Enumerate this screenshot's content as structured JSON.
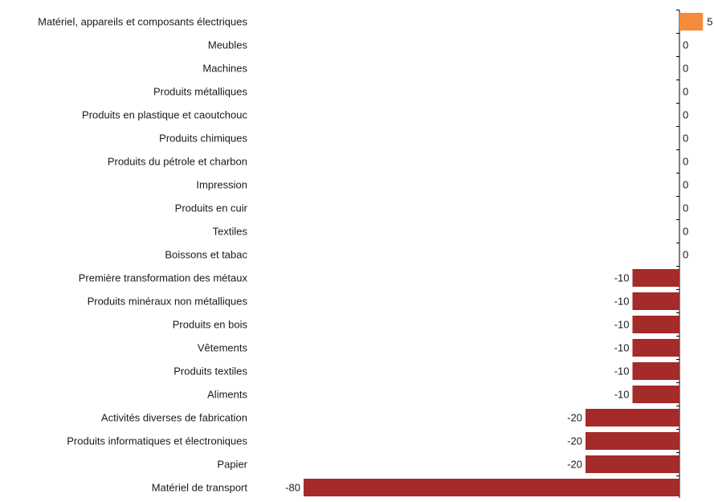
{
  "chart_data": {
    "type": "bar",
    "orientation": "horizontal",
    "categories": [
      "Matériel, appareils et composants électriques",
      "Meubles",
      "Machines",
      "Produits métalliques",
      "Produits en plastique et caoutchouc",
      "Produits chimiques",
      "Produits du pétrole et charbon",
      "Impression",
      "Produits en cuir",
      "Textiles",
      "Boissons et tabac",
      "Première transformation des métaux",
      "Produits minéraux non métalliques",
      "Produits en bois",
      "Vêtements",
      "Produits textiles",
      "Aliments",
      "Activités diverses de fabrication",
      "Produits informatiques et électroniques",
      "Papier",
      "Matériel de transport"
    ],
    "values": [
      5,
      0,
      0,
      0,
      0,
      0,
      0,
      0,
      0,
      0,
      0,
      -10,
      -10,
      -10,
      -10,
      -10,
      -10,
      -20,
      -20,
      -20,
      -80
    ],
    "value_labels": [
      "5",
      "0",
      "0",
      "0",
      "0",
      "0",
      "0",
      "0",
      "0",
      "0",
      "0",
      "-10",
      "-10",
      "-10",
      "-10",
      "-10",
      "-10",
      "-20",
      "-20",
      "-20",
      "-80"
    ],
    "xlim": [
      -80,
      5
    ],
    "grid": false,
    "legend": "none",
    "colors": {
      "positive": "#f58b3c",
      "negative": "#a52a2a",
      "axis": "#000000",
      "text": "#1a1a1a"
    }
  }
}
